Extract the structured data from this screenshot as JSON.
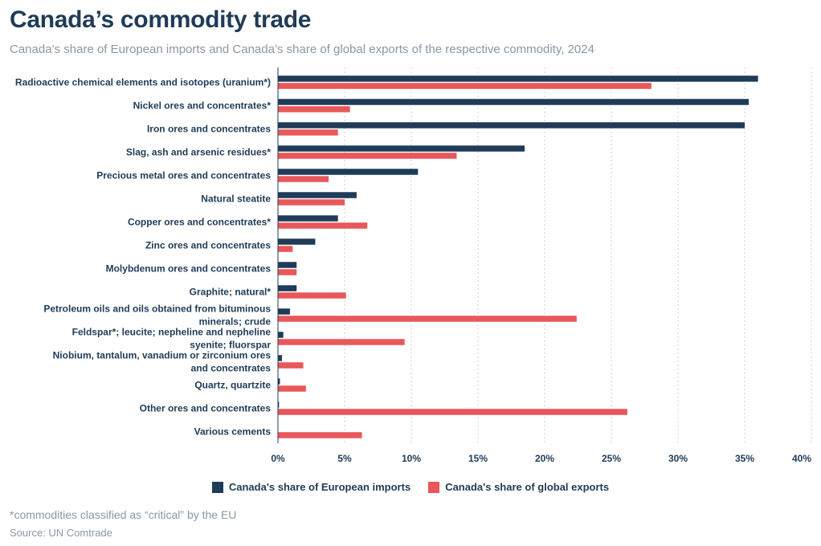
{
  "title": "Canada’s commodity trade",
  "subtitle": "Canada’s share of European imports and Canada’s share of global exports of the respective commodity, 2024",
  "footnote": "*commodities classified as “critical” by the EU",
  "source": "Source: UN Comtrade",
  "colors": {
    "europe": "#1f3b57",
    "global": "#e8575a",
    "grid": "#c9cfd6"
  },
  "chart_data": {
    "type": "bar",
    "orientation": "horizontal",
    "categories": [
      "Radioactive chemical elements and isotopes (uranium*)",
      "Nickel ores and concentrates*",
      "Iron ores and concentrates",
      "Slag, ash and arsenic residues*",
      "Precious metal ores and concentrates",
      "Natural steatite",
      "Copper ores and concentrates*",
      "Zinc ores and concentrates",
      "Molybdenum ores and concentrates",
      "Graphite; natural*",
      "Petroleum oils and oils obtained from bituminous minerals; crude",
      "Feldspar*; leucite; nepheline and nepheline syenite; fluorspar",
      "Niobium, tantalum, vanadium or zirconium ores and concentrates",
      "Quartz, quartzite",
      "Other ores and concentrates",
      "Various cements"
    ],
    "category_lines": [
      [
        "Radioactive chemical elements and isotopes (uranium*)"
      ],
      [
        "Nickel ores and concentrates*"
      ],
      [
        "Iron ores and concentrates"
      ],
      [
        "Slag, ash and arsenic residues*"
      ],
      [
        "Precious metal ores and concentrates"
      ],
      [
        "Natural steatite"
      ],
      [
        "Copper ores and concentrates*"
      ],
      [
        "Zinc ores and concentrates"
      ],
      [
        "Molybdenum ores and concentrates"
      ],
      [
        "Graphite; natural*"
      ],
      [
        "Petroleum oils and oils obtained from bituminous",
        "minerals; crude"
      ],
      [
        "Feldspar*; leucite; nepheline and nepheline",
        "syenite; fluorspar"
      ],
      [
        "Niobium, tantalum, vanadium or zirconium ores",
        "and concentrates"
      ],
      [
        "Quartz, quartzite"
      ],
      [
        "Other ores and concentrates"
      ],
      [
        "Various cements"
      ]
    ],
    "series": [
      {
        "name": "Canada's share of European imports",
        "values": [
          36.0,
          35.3,
          35.0,
          18.5,
          10.5,
          5.9,
          4.5,
          2.8,
          1.4,
          1.4,
          0.9,
          0.4,
          0.3,
          0.15,
          0.08,
          0.0
        ]
      },
      {
        "name": "Canada's share of global exports",
        "values": [
          28.0,
          5.4,
          4.5,
          13.4,
          3.8,
          5.0,
          6.7,
          1.1,
          1.4,
          5.1,
          22.4,
          9.5,
          1.9,
          2.1,
          26.2,
          6.3
        ]
      }
    ],
    "xticks": [
      "0%",
      "5%",
      "10%",
      "15%",
      "20%",
      "25%",
      "30%",
      "35%",
      "40%"
    ],
    "xlim": [
      0,
      40
    ],
    "grid": true,
    "legend": "bottom"
  }
}
